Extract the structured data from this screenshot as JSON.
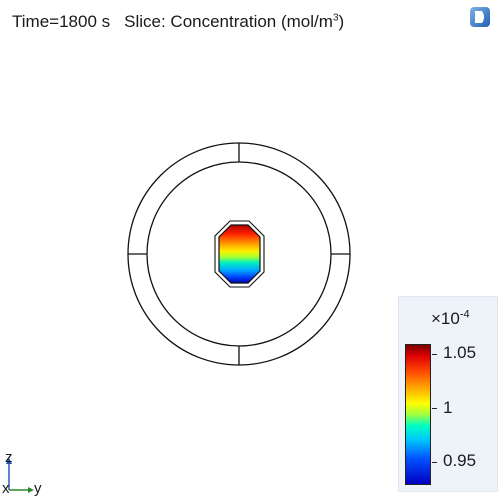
{
  "header": {
    "time_label": "Time=1800 s",
    "slice_label": "Slice: Concentration (mol/m",
    "slice_sup": "3",
    "slice_close": ")"
  },
  "colorbar": {
    "exponent_prefix": "×10",
    "exponent": "-4",
    "ticks": [
      "1.05",
      "1",
      "0.95"
    ],
    "max_color": "#7a0000",
    "min_color": "#0000c0"
  },
  "axes": {
    "vertical": "z",
    "horizontal": "y",
    "origin": "x"
  },
  "icons": {
    "corner": "comsol-logo-icon"
  }
}
